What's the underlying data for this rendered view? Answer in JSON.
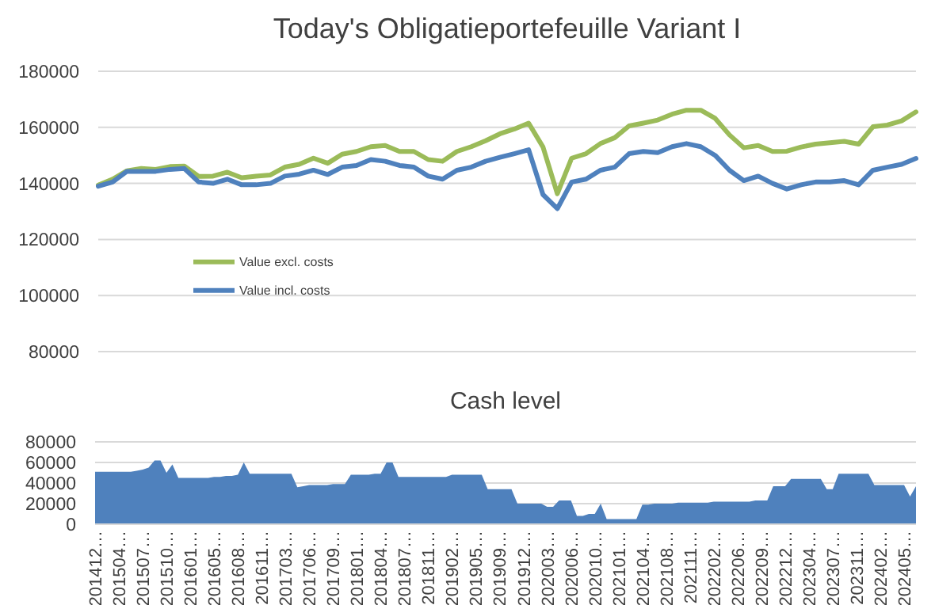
{
  "chart_data": [
    {
      "type": "line",
      "title": "Today's Obligatieportefeuille Variant I",
      "categories": [
        null,
        null,
        null,
        null,
        null,
        null,
        null,
        null,
        null,
        null,
        null,
        null,
        null,
        null,
        null,
        null,
        null,
        null,
        null,
        null,
        null,
        null,
        null,
        null,
        null,
        null,
        null,
        null,
        null,
        null,
        null,
        null,
        null,
        null,
        null,
        null,
        null,
        null,
        null,
        null,
        null,
        null,
        null,
        null,
        null,
        null,
        null,
        null,
        null,
        null,
        null,
        null,
        null,
        null,
        null,
        null,
        null,
        null
      ],
      "ylim": [
        80000,
        180000
      ],
      "yticks": [
        80000,
        100000,
        120000,
        140000,
        160000,
        180000
      ],
      "grid": "y",
      "legend": "left",
      "tick_labels": "y",
      "marker": "none",
      "line_style": "solid",
      "series": [
        {
          "name": "Value excl. costs",
          "color": "#9bbb59",
          "values": [
            139400,
            141500,
            144500,
            145300,
            145000,
            146000,
            146200,
            142500,
            142600,
            144000,
            142000,
            142600,
            143000,
            145800,
            146800,
            149000,
            147200,
            150400,
            151400,
            153100,
            153500,
            151400,
            151400,
            148500,
            147900,
            151400,
            153100,
            155200,
            157700,
            159400,
            161500,
            153000,
            136300,
            149000,
            150600,
            154200,
            156300,
            160500,
            161500,
            162600,
            164700,
            166100,
            166100,
            163200,
            157300,
            152700,
            153500,
            151400,
            151500,
            153000,
            154000,
            154500,
            155000,
            154000,
            160200,
            160800,
            162300,
            165500
          ]
        },
        {
          "name": "Value incl. costs",
          "color": "#4f81bd",
          "values": [
            139000,
            140500,
            144300,
            144300,
            144300,
            145000,
            145300,
            140500,
            140000,
            141500,
            139500,
            139500,
            140000,
            142600,
            143300,
            144700,
            143200,
            145800,
            146400,
            148500,
            147900,
            146400,
            145800,
            142600,
            141500,
            144700,
            145800,
            147900,
            149300,
            150600,
            152000,
            136000,
            131000,
            140500,
            141500,
            144700,
            145800,
            150600,
            151400,
            151000,
            153100,
            154200,
            153100,
            150000,
            144700,
            141000,
            142600,
            140000,
            138000,
            139500,
            140500,
            140500,
            141000,
            139500,
            144700,
            145800,
            146800,
            148900
          ]
        }
      ]
    },
    {
      "type": "area",
      "title": "Cash level",
      "categories": [
        "201412…",
        null,
        null,
        null,
        "201504…",
        null,
        null,
        null,
        "201507…",
        null,
        null,
        null,
        "201510…",
        null,
        null,
        null,
        "201601…",
        null,
        null,
        null,
        "201605…",
        null,
        null,
        null,
        "201608…",
        null,
        null,
        null,
        "201611…",
        null,
        null,
        null,
        "201703…",
        null,
        null,
        null,
        "201706…",
        null,
        null,
        null,
        "201709…",
        null,
        null,
        null,
        "201801…",
        null,
        null,
        null,
        "201804…",
        null,
        null,
        null,
        "201807…",
        null,
        null,
        null,
        "201811…",
        null,
        null,
        null,
        "201902…",
        null,
        null,
        null,
        "201905…",
        null,
        null,
        null,
        "201909…",
        null,
        null,
        null,
        "201912…",
        null,
        null,
        null,
        "202003…",
        null,
        null,
        null,
        "202006…",
        null,
        null,
        null,
        "202010…",
        null,
        null,
        null,
        "202101…",
        null,
        null,
        null,
        "202104…",
        null,
        null,
        null,
        "202108…",
        null,
        null,
        null,
        "202111…",
        null,
        null,
        null,
        "202202…",
        null,
        null,
        null,
        "202206…",
        null,
        null,
        null,
        "202209…",
        null,
        null,
        null,
        "202212…",
        null,
        null,
        null,
        "202304…",
        null,
        null,
        null,
        "202307…",
        null,
        null,
        null,
        "202311…",
        null,
        null,
        null,
        "202402…",
        null,
        null,
        null,
        "202405…",
        null,
        null
      ],
      "ylim": [
        0,
        80000
      ],
      "yticks": [
        0,
        20000,
        40000,
        60000,
        80000
      ],
      "grid": "y",
      "color": "#4f81bd",
      "values": [
        51000,
        51000,
        51000,
        51000,
        51000,
        51000,
        51000,
        52000,
        53000,
        55000,
        62000,
        62000,
        50000,
        58000,
        45000,
        45000,
        45000,
        45000,
        45000,
        45000,
        46000,
        46000,
        47000,
        47000,
        48000,
        60000,
        49000,
        49000,
        49000,
        49000,
        49000,
        49000,
        49000,
        49000,
        36000,
        37000,
        38000,
        38000,
        38000,
        38000,
        39000,
        39000,
        39000,
        48000,
        48000,
        48000,
        48000,
        49000,
        49000,
        60000,
        60000,
        46000,
        46000,
        46000,
        46000,
        46000,
        46000,
        46000,
        46000,
        46000,
        48000,
        48000,
        48000,
        48000,
        48000,
        48000,
        34000,
        34000,
        34000,
        34000,
        34000,
        20000,
        20000,
        20000,
        20000,
        20000,
        17000,
        17000,
        23000,
        23000,
        23000,
        8000,
        8000,
        10000,
        10000,
        20000,
        5000,
        5000,
        5000,
        5000,
        5000,
        5000,
        19000,
        19000,
        20000,
        20000,
        20000,
        20000,
        21000,
        21000,
        21000,
        21000,
        21000,
        21000,
        22000,
        22000,
        22000,
        22000,
        22000,
        22000,
        22000,
        23000,
        23000,
        23000,
        37000,
        37000,
        37000,
        44000,
        44000,
        44000,
        44000,
        44000,
        44000,
        34000,
        34000,
        49000,
        49000,
        49000,
        49000,
        49000,
        49000,
        38000,
        38000,
        38000,
        38000,
        38000,
        38000,
        27000,
        37000
      ]
    }
  ]
}
